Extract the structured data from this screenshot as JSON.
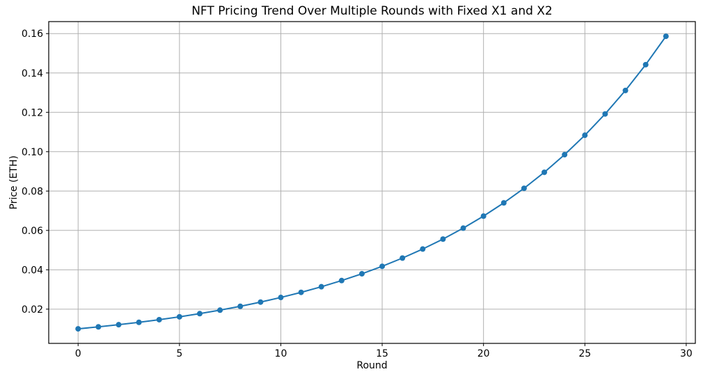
{
  "chart_data": {
    "type": "line",
    "title": "NFT Pricing Trend Over Multiple Rounds with Fixed X1 and X2",
    "xlabel": "Round",
    "ylabel": "Price (ETH)",
    "x": [
      0,
      1,
      2,
      3,
      4,
      5,
      6,
      7,
      8,
      9,
      10,
      11,
      12,
      13,
      14,
      15,
      16,
      17,
      18,
      19,
      20,
      21,
      22,
      23,
      24,
      25,
      26,
      27,
      28,
      29
    ],
    "series": [
      {
        "name": "Price",
        "values": [
          0.01,
          0.011,
          0.0121,
          0.01331,
          0.01464,
          0.01611,
          0.01772,
          0.01949,
          0.02144,
          0.02358,
          0.02594,
          0.02853,
          0.03138,
          0.03452,
          0.03797,
          0.04177,
          0.04595,
          0.05054,
          0.0556,
          0.06116,
          0.06727,
          0.074,
          0.0814,
          0.08954,
          0.0985,
          0.10835,
          0.11918,
          0.1311,
          0.14421,
          0.15863
        ]
      }
    ],
    "x_ticks": [
      0,
      5,
      10,
      15,
      20,
      25,
      30
    ],
    "y_ticks": [
      0.02,
      0.04,
      0.06,
      0.08,
      0.1,
      0.12,
      0.14,
      0.16
    ],
    "xlim": [
      -1.45,
      30.45
    ],
    "ylim": [
      0.0026,
      0.1661
    ],
    "grid": true,
    "legend_position": "none",
    "line_color": "#1f77b4",
    "marker": "circle",
    "marker_color": "#1f77b4",
    "grid_color": "#b0b0b0",
    "frame_color": "#000000",
    "background_color": "#ffffff"
  }
}
